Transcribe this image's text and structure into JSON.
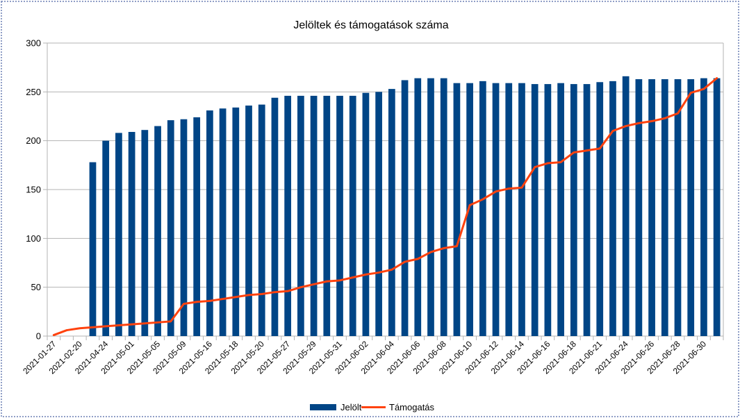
{
  "chart_data": {
    "type": "bar",
    "title": "Jelöltek és támogatások száma",
    "xlabel": "",
    "ylabel": "",
    "ylim": [
      0,
      300
    ],
    "y_ticks": [
      0,
      50,
      100,
      150,
      200,
      250,
      300
    ],
    "categories": [
      "2021-01-27",
      "",
      "2021-02-20",
      "",
      "2021-04-24",
      "",
      "2021-05-01",
      "",
      "2021-05-05",
      "",
      "2021-05-09",
      "",
      "2021-05-16",
      "",
      "2021-05-18",
      "",
      "2021-05-20",
      "",
      "2021-05-27",
      "",
      "2021-05-29",
      "",
      "2021-05-31",
      "",
      "2021-06-02",
      "",
      "2021-06-04",
      "",
      "2021-06-06",
      "",
      "2021-06-08",
      "",
      "2021-06-10",
      "",
      "2021-06-12",
      "",
      "2021-06-14",
      "",
      "2021-06-16",
      "",
      "2021-06-18",
      "",
      "2021-06-21",
      "",
      "2021-06-24",
      "",
      "2021-06-26",
      "",
      "2021-06-28",
      "",
      "2021-06-30",
      ""
    ],
    "x_tick_labels": [
      "2021-01-27",
      "2021-02-20",
      "2021-04-24",
      "2021-05-01",
      "2021-05-05",
      "2021-05-09",
      "2021-05-16",
      "2021-05-18",
      "2021-05-20",
      "2021-05-27",
      "2021-05-29",
      "2021-05-31",
      "2021-06-02",
      "2021-06-04",
      "2021-06-06",
      "2021-06-08",
      "2021-06-10",
      "2021-06-12",
      "2021-06-14",
      "2021-06-16",
      "2021-06-18",
      "2021-06-21",
      "2021-06-24",
      "2021-06-26",
      "2021-06-28",
      "2021-06-30"
    ],
    "grid": true,
    "legend_position": "bottom",
    "series": [
      {
        "name": "Jelölt",
        "type": "bar",
        "color": "#004586",
        "values": [
          null,
          null,
          null,
          178,
          200,
          208,
          209,
          211,
          215,
          221,
          222,
          224,
          231,
          233,
          234,
          236,
          237,
          244,
          246,
          246,
          246,
          246,
          246,
          246,
          249,
          250,
          253,
          262,
          264,
          264,
          264,
          259,
          259,
          261,
          259,
          259,
          259,
          258,
          258,
          259,
          258,
          258,
          260,
          261,
          266,
          263,
          263,
          263,
          263,
          263,
          264,
          264
        ]
      },
      {
        "name": "Támogatás",
        "type": "line",
        "color": "#ff420e",
        "values": [
          1,
          6,
          8,
          9,
          10,
          11,
          12,
          13,
          14,
          15,
          33,
          35,
          36,
          38,
          40,
          42,
          43,
          45,
          46,
          50,
          53,
          56,
          57,
          60,
          63,
          65,
          68,
          76,
          79,
          86,
          90,
          92,
          134,
          140,
          148,
          151,
          152,
          173,
          177,
          178,
          188,
          190,
          192,
          210,
          215,
          218,
          220,
          223,
          228,
          249,
          253,
          264
        ]
      }
    ]
  }
}
